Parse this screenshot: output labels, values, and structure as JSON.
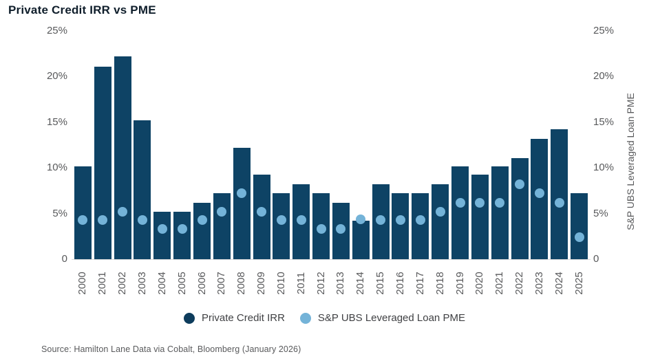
{
  "title": "Private Credit IRR vs PME",
  "source": "Source: Hamilton Lane Data via Cobalt, Bloomberg (January 2026)",
  "right_axis_title": "S&P UBS Leveraged Loan PME",
  "legend": [
    {
      "label": "Private Credit IRR",
      "color": "#0d3c5c"
    },
    {
      "label": "S&P UBS Leveraged Loan PME",
      "color": "#74b3d8"
    }
  ],
  "colors": {
    "bar": "#0e4365",
    "dot": "#74b3d8",
    "axis_text": "#58595b",
    "title_text": "#0f1e2b",
    "baseline": "#d8d8d8",
    "legend_text": "#3f4043"
  },
  "chart_data": {
    "type": "bar",
    "title": "Private Credit IRR vs PME",
    "categories": [
      "2000",
      "2001",
      "2002",
      "2003",
      "2004",
      "2005",
      "2006",
      "2007",
      "2008",
      "2009",
      "2010",
      "2011",
      "2012",
      "2013",
      "2014",
      "2015",
      "2016",
      "2017",
      "2018",
      "2019",
      "2020",
      "2021",
      "2022",
      "2023",
      "2024",
      "2025"
    ],
    "series": [
      {
        "name": "Private Credit IRR",
        "type": "bar",
        "values": [
          10.2,
          21.1,
          22.2,
          15.2,
          5.2,
          5.2,
          6.2,
          7.2,
          12.2,
          9.3,
          7.2,
          8.2,
          7.2,
          6.2,
          4.2,
          8.2,
          7.2,
          7.2,
          8.2,
          10.2,
          9.3,
          10.2,
          11.1,
          13.2,
          14.2,
          7.2
        ]
      },
      {
        "name": "S&P UBS Leveraged Loan PME",
        "type": "scatter",
        "values": [
          4.3,
          4.3,
          5.2,
          4.3,
          3.3,
          3.3,
          4.3,
          5.2,
          7.2,
          5.2,
          4.3,
          4.3,
          3.3,
          3.3,
          4.4,
          4.3,
          4.3,
          4.3,
          5.2,
          6.2,
          6.2,
          6.2,
          8.2,
          7.2,
          6.2,
          2.4
        ]
      }
    ],
    "ylim": [
      0,
      25
    ],
    "yticks": [
      {
        "value": 0,
        "label": "0"
      },
      {
        "value": 5,
        "label": "5%"
      },
      {
        "value": 10,
        "label": "10%"
      },
      {
        "value": 15,
        "label": "15%"
      },
      {
        "value": 20,
        "label": "20%"
      },
      {
        "value": 25,
        "label": "25%"
      }
    ],
    "xlabel": "",
    "ylabel_left": "",
    "ylabel_right": "S&P UBS Leveraged Loan PME",
    "grid": false,
    "legend_position": "bottom"
  }
}
